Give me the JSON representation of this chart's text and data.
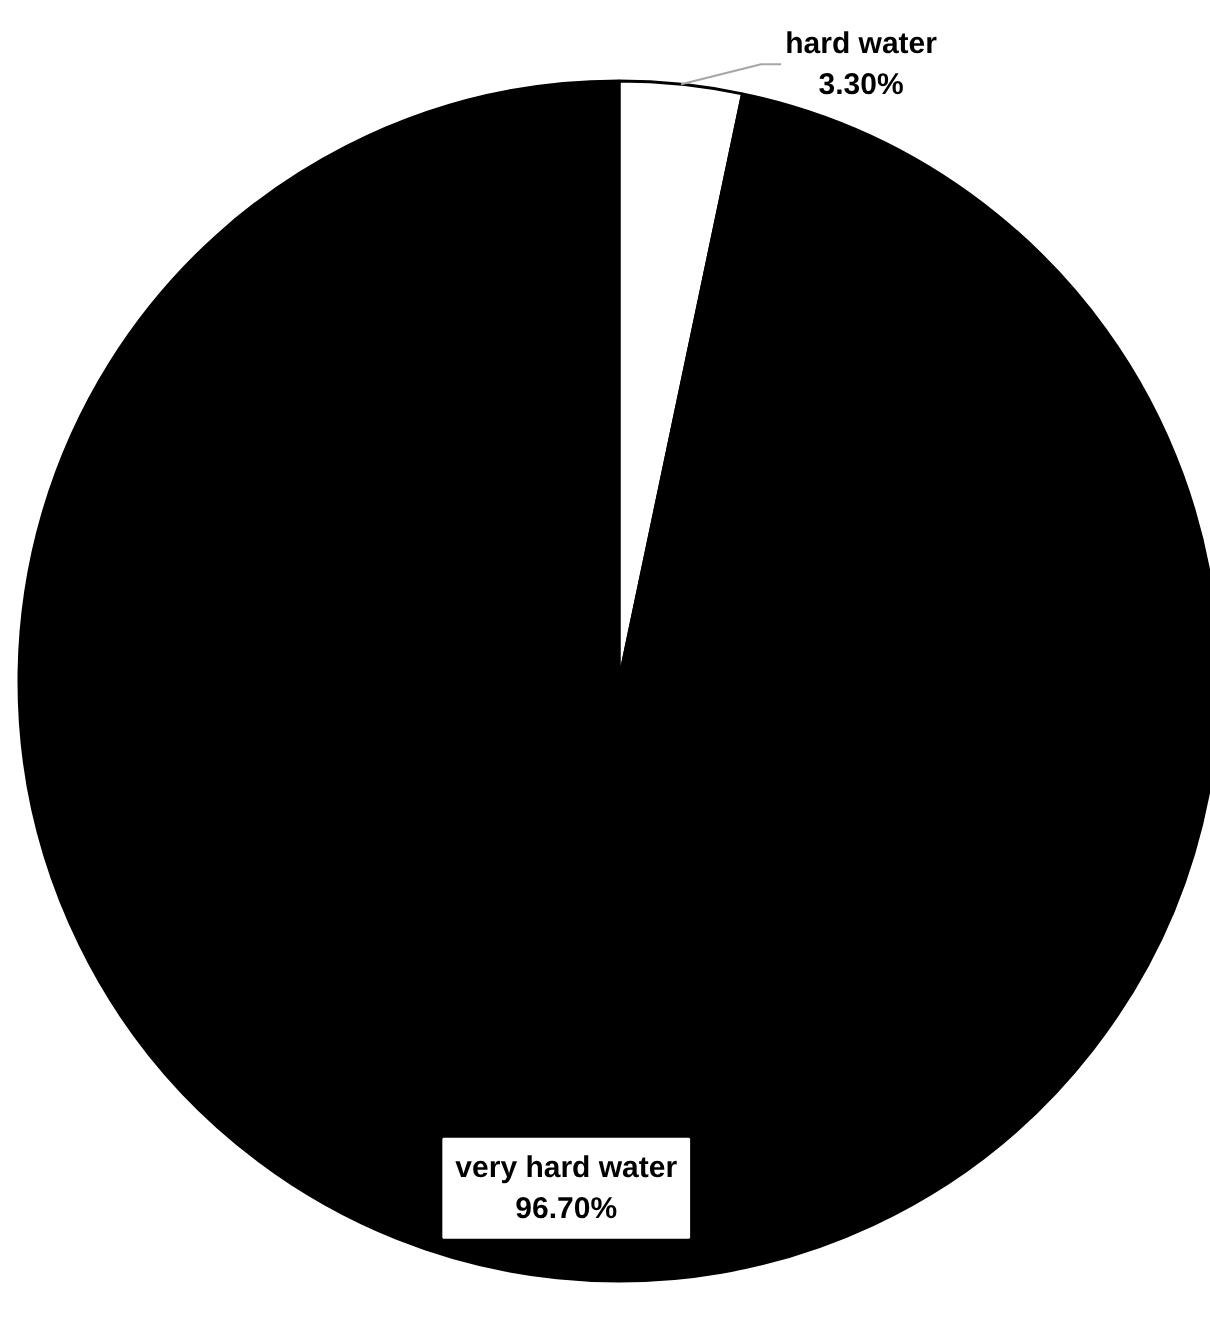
{
  "chart_data": {
    "type": "pie",
    "categories": [
      "hard water",
      "very hard water"
    ],
    "values": [
      3.3,
      96.7
    ],
    "colors": [
      "#ffffff",
      "#000000"
    ],
    "value_labels": [
      "3.30%",
      "96.70%"
    ]
  }
}
